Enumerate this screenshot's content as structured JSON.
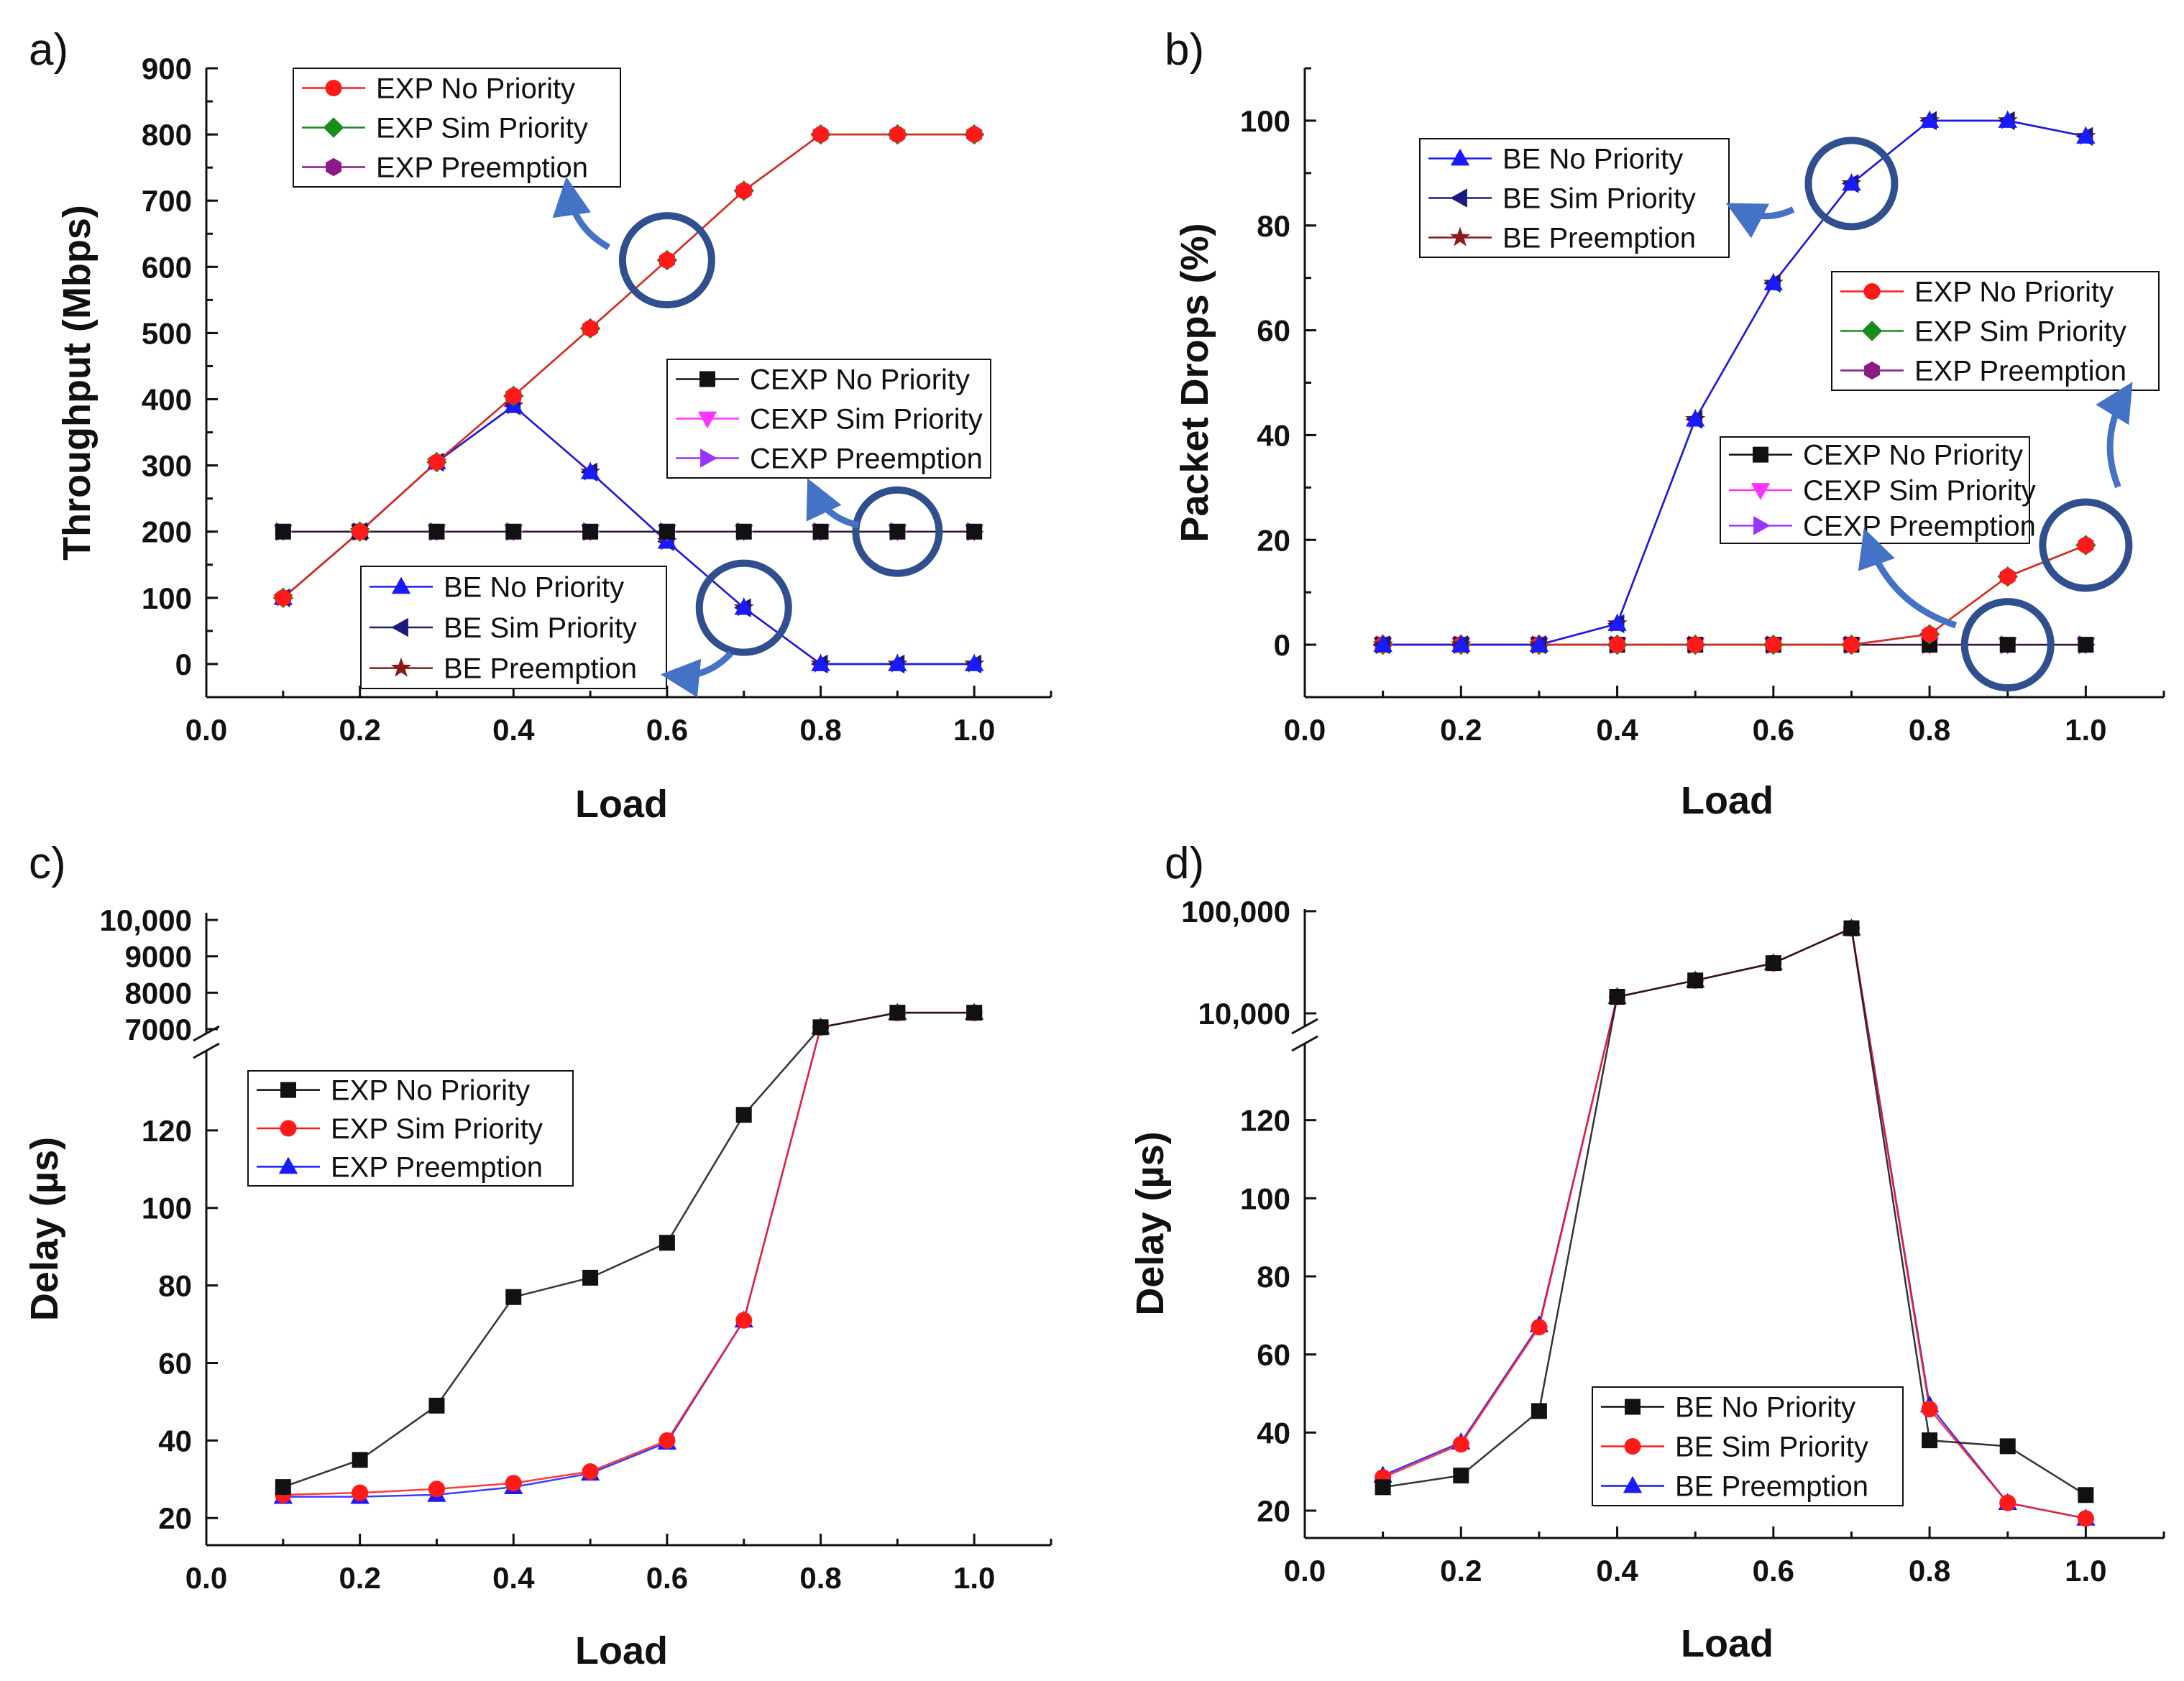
{
  "chart_data": [
    {
      "panel": "a)",
      "type": "line",
      "title": "",
      "xlabel": "Load",
      "ylabel": "Throughput (Mbps)",
      "xlim": [
        0.0,
        1.1
      ],
      "ylim": [
        -50,
        900
      ],
      "x_ticks": [
        "0.0",
        "0.2",
        "0.4",
        "0.6",
        "0.8",
        "1.0"
      ],
      "y_ticks": [
        "0",
        "100",
        "200",
        "300",
        "400",
        "500",
        "600",
        "700",
        "800",
        "900"
      ],
      "x": [
        0.1,
        0.2,
        0.3,
        0.4,
        0.5,
        0.6,
        0.7,
        0.8,
        0.9,
        1.0
      ],
      "series": [
        {
          "name": "EXP No Priority",
          "marker": "circle",
          "color": "#ff1a1a",
          "values": [
            100,
            200,
            305,
            405,
            507,
            610,
            715,
            800,
            800,
            800
          ]
        },
        {
          "name": "EXP Sim Priority",
          "marker": "diamond",
          "color": "#1a8c1a",
          "values": [
            100,
            200,
            305,
            405,
            507,
            610,
            715,
            800,
            800,
            800
          ]
        },
        {
          "name": "EXP Preemption",
          "marker": "hexagon",
          "color": "#8b1a8b",
          "values": [
            100,
            200,
            305,
            405,
            507,
            610,
            715,
            800,
            800,
            800
          ]
        },
        {
          "name": "CEXP No Priority",
          "marker": "square",
          "color": "#111111",
          "values": [
            200,
            200,
            200,
            200,
            200,
            200,
            200,
            200,
            200,
            200
          ]
        },
        {
          "name": "CEXP Sim Priority",
          "marker": "triangle-down",
          "color": "#ff33ff",
          "values": [
            200,
            200,
            200,
            200,
            200,
            200,
            200,
            200,
            200,
            200
          ]
        },
        {
          "name": "CEXP Preemption",
          "marker": "triangle-right",
          "color": "#9933ff",
          "values": [
            200,
            200,
            200,
            200,
            200,
            200,
            200,
            200,
            200,
            200
          ]
        },
        {
          "name": "BE No Priority",
          "marker": "triangle-up",
          "color": "#1a1aff",
          "values": [
            100,
            200,
            305,
            390,
            290,
            185,
            85,
            0,
            0,
            0
          ]
        },
        {
          "name": "BE Sim Priority",
          "marker": "triangle-left",
          "color": "#1a1a80",
          "values": [
            100,
            200,
            305,
            390,
            290,
            185,
            85,
            0,
            0,
            0
          ]
        },
        {
          "name": "BE Preemption",
          "marker": "star",
          "color": "#8b1a1a",
          "values": [
            100,
            200,
            305,
            390,
            290,
            185,
            85,
            0,
            0,
            0
          ]
        }
      ],
      "legends": [
        {
          "entries": [
            "EXP No Priority",
            "EXP Sim Priority",
            "EXP Preemption"
          ]
        },
        {
          "entries": [
            "CEXP No Priority",
            "CEXP Sim Priority",
            "CEXP Preemption"
          ]
        },
        {
          "entries": [
            "BE No Priority",
            "BE Sim Priority",
            "BE Preemption"
          ]
        }
      ],
      "annotations": [
        {
          "type": "circle",
          "x": 0.6,
          "y": 610
        },
        {
          "type": "circle",
          "x": 0.9,
          "y": 200
        },
        {
          "type": "circle",
          "x": 0.7,
          "y": 85
        }
      ]
    },
    {
      "panel": "b)",
      "type": "line",
      "title": "",
      "xlabel": "Load",
      "ylabel": "Packet Drops (%)",
      "xlim": [
        0.0,
        1.1
      ],
      "ylim": [
        -10,
        110
      ],
      "x_ticks": [
        "0.0",
        "0.2",
        "0.4",
        "0.6",
        "0.8",
        "1.0"
      ],
      "y_ticks": [
        "0",
        "20",
        "40",
        "60",
        "80",
        "100"
      ],
      "x": [
        0.1,
        0.2,
        0.3,
        0.4,
        0.5,
        0.6,
        0.7,
        0.8,
        0.9,
        1.0
      ],
      "series": [
        {
          "name": "BE No Priority",
          "marker": "triangle-up",
          "color": "#1a1aff",
          "values": [
            0,
            0,
            0,
            4,
            43,
            69,
            88,
            100,
            100,
            97
          ]
        },
        {
          "name": "BE Sim Priority",
          "marker": "triangle-left",
          "color": "#1a1a80",
          "values": [
            0,
            0,
            0,
            4,
            43,
            69,
            88,
            100,
            100,
            97
          ]
        },
        {
          "name": "BE Preemption",
          "marker": "star",
          "color": "#8b1a1a",
          "values": [
            0,
            0,
            0,
            4,
            43,
            69,
            88,
            100,
            100,
            97
          ]
        },
        {
          "name": "EXP No Priority",
          "marker": "circle",
          "color": "#ff1a1a",
          "values": [
            0,
            0,
            0,
            0,
            0,
            0,
            0,
            2,
            13,
            19
          ]
        },
        {
          "name": "EXP Sim Priority",
          "marker": "diamond",
          "color": "#1a8c1a",
          "values": [
            0,
            0,
            0,
            0,
            0,
            0,
            0,
            2,
            13,
            19
          ]
        },
        {
          "name": "EXP Preemption",
          "marker": "hexagon",
          "color": "#8b1a8b",
          "values": [
            0,
            0,
            0,
            0,
            0,
            0,
            0,
            2,
            13,
            19
          ]
        },
        {
          "name": "CEXP No Priority",
          "marker": "square",
          "color": "#111111",
          "values": [
            0,
            0,
            0,
            0,
            0,
            0,
            0,
            0,
            0,
            0
          ]
        },
        {
          "name": "CEXP Sim Priority",
          "marker": "triangle-down",
          "color": "#ff33ff",
          "values": [
            0,
            0,
            0,
            0,
            0,
            0,
            0,
            0,
            0,
            0
          ]
        },
        {
          "name": "CEXP Preemption",
          "marker": "triangle-right",
          "color": "#9933ff",
          "values": [
            0,
            0,
            0,
            0,
            0,
            0,
            0,
            0,
            0,
            0
          ]
        }
      ],
      "legends": [
        {
          "entries": [
            "BE No Priority",
            "BE Sim Priority",
            "BE Preemption"
          ]
        },
        {
          "entries": [
            "EXP No Priority",
            "EXP Sim Priority",
            "EXP Preemption"
          ]
        },
        {
          "entries": [
            "CEXP No Priority",
            "CEXP Sim Priority",
            "CEXP Preemption"
          ]
        }
      ],
      "annotations": [
        {
          "type": "circle",
          "x": 0.7,
          "y": 88
        },
        {
          "type": "circle",
          "x": 1.0,
          "y": 19
        },
        {
          "type": "circle",
          "x": 0.9,
          "y": 0
        }
      ]
    },
    {
      "panel": "c)",
      "type": "line",
      "title": "",
      "xlabel": "Load",
      "ylabel": "Delay (µs)",
      "xlim": [
        0.0,
        1.1
      ],
      "y_axis_break": true,
      "ylim_lower": [
        13,
        140
      ],
      "ylim_upper": [
        6900,
        10100
      ],
      "x_ticks": [
        "0.0",
        "0.2",
        "0.4",
        "0.6",
        "0.8",
        "1.0"
      ],
      "y_ticks_lower": [
        "20",
        "40",
        "60",
        "80",
        "100",
        "120"
      ],
      "y_ticks_upper": [
        "7000",
        "8000",
        "9000",
        "10,000"
      ],
      "x": [
        0.1,
        0.2,
        0.3,
        0.4,
        0.5,
        0.6,
        0.7,
        0.8,
        0.9,
        1.0
      ],
      "series": [
        {
          "name": "EXP No Priority",
          "marker": "square",
          "color": "#111111",
          "values": [
            28,
            35,
            49,
            77,
            82,
            91,
            124,
            7050,
            7450,
            7450
          ]
        },
        {
          "name": "EXP Sim Priority",
          "marker": "circle",
          "color": "#ff1a1a",
          "values": [
            26,
            26.5,
            27.5,
            29,
            32,
            40,
            71,
            7050,
            7450,
            7450
          ]
        },
        {
          "name": "EXP Preemption",
          "marker": "triangle-up",
          "color": "#1a1aff",
          "values": [
            25.5,
            25.5,
            26,
            28,
            31.5,
            39.5,
            71,
            7050,
            7450,
            7450
          ]
        }
      ],
      "legends": [
        {
          "entries": [
            "EXP No Priority",
            "EXP Sim Priority",
            "EXP Preemption"
          ]
        }
      ]
    },
    {
      "panel": "d)",
      "type": "line",
      "title": "",
      "xlabel": "Load",
      "ylabel": "Delay (µs)",
      "xlim": [
        0.0,
        1.1
      ],
      "y_axis_break": true,
      "ylim_lower": [
        13,
        140
      ],
      "ylim_upper_log": [
        7000,
        110000
      ],
      "x_ticks": [
        "0.0",
        "0.2",
        "0.4",
        "0.6",
        "0.8",
        "1.0"
      ],
      "y_ticks_lower": [
        "20",
        "40",
        "60",
        "80",
        "100",
        "120"
      ],
      "y_ticks_upper": [
        "10,000",
        "100,000"
      ],
      "x": [
        0.1,
        0.2,
        0.3,
        0.4,
        0.5,
        0.6,
        0.7,
        0.8,
        0.9,
        1.0
      ],
      "series": [
        {
          "name": "BE No Priority",
          "marker": "square",
          "color": "#111111",
          "values": [
            26,
            29,
            45.5,
            14500,
            21000,
            31000,
            68000,
            38,
            36.5,
            24
          ]
        },
        {
          "name": "BE Sim Priority",
          "marker": "circle",
          "color": "#ff1a1a",
          "values": [
            28.5,
            37,
            67,
            14500,
            21000,
            31000,
            68000,
            46,
            22,
            18
          ]
        },
        {
          "name": "BE Preemption",
          "marker": "triangle-up",
          "color": "#1a1aff",
          "values": [
            29,
            37.5,
            67.5,
            14500,
            21000,
            31000,
            68000,
            47,
            22,
            18
          ]
        }
      ],
      "legends": [
        {
          "entries": [
            "BE No Priority",
            "BE Sim Priority",
            "BE Preemption"
          ]
        }
      ]
    }
  ]
}
